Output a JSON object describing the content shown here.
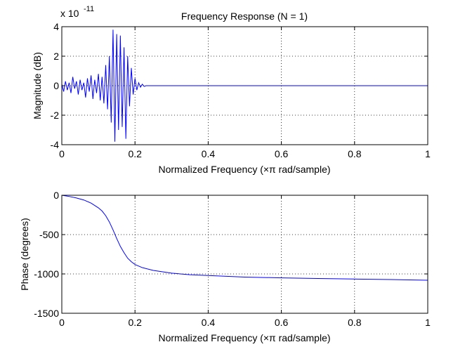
{
  "chart_data": [
    {
      "type": "line",
      "title": "Frequency Response (N = 1)",
      "xlabel": "Normalized Frequency  (×π rad/sample)",
      "ylabel": "Magnitude (dB)",
      "exponent_base": "x 10",
      "exponent_power": "-11",
      "xlim": [
        0,
        1
      ],
      "ylim": [
        -4,
        4
      ],
      "xticks": [
        0,
        0.2,
        0.4,
        0.6,
        0.8,
        1
      ],
      "xtick_labels": [
        "0",
        "0.2",
        "0.4",
        "0.6",
        "0.8",
        "1"
      ],
      "yticks": [
        -4,
        -2,
        0,
        2,
        4
      ],
      "ytick_labels": [
        "-4",
        "-2",
        "0",
        "2",
        "4"
      ],
      "grid": true,
      "color": "#0000ff",
      "series": [
        {
          "x": [
            0,
            0.005,
            0.01,
            0.015,
            0.02,
            0.025,
            0.03,
            0.035,
            0.04,
            0.045,
            0.05,
            0.055,
            0.06,
            0.065,
            0.07,
            0.075,
            0.08,
            0.085,
            0.09,
            0.095,
            0.1,
            0.105,
            0.11,
            0.115,
            0.12,
            0.125,
            0.13,
            0.135,
            0.14,
            0.145,
            0.15,
            0.155,
            0.16,
            0.165,
            0.17,
            0.175,
            0.18,
            0.185,
            0.19,
            0.195,
            0.2,
            0.205,
            0.21,
            0.215,
            0.22,
            0.225,
            0.23,
            0.24,
            0.25,
            0.3,
            0.4,
            0.5,
            0.6,
            0.7,
            0.8,
            0.9,
            1
          ],
          "y": [
            0.1,
            -0.4,
            0.3,
            -0.3,
            0.2,
            -0.5,
            0.6,
            -0.2,
            0.3,
            -0.6,
            0.4,
            -0.3,
            0.2,
            -0.8,
            0.5,
            -0.4,
            0.7,
            -0.9,
            0.4,
            -0.5,
            0.8,
            -1.0,
            0.6,
            -1.2,
            1.4,
            -1.6,
            2.0,
            -2.5,
            3.8,
            -3.8,
            3.5,
            -3.0,
            3.4,
            -2.8,
            2.6,
            -3.6,
            2.0,
            -1.4,
            1.2,
            -0.6,
            0.5,
            -0.3,
            0.2,
            -0.1,
            0.1,
            -0.05,
            0,
            0,
            0,
            0,
            0,
            0,
            0,
            0,
            0,
            0,
            0
          ]
        }
      ]
    },
    {
      "type": "line",
      "title": "",
      "xlabel": "Normalized Frequency  (×π rad/sample)",
      "ylabel": "Phase (degrees)",
      "xlim": [
        0,
        1
      ],
      "ylim": [
        -1500,
        0
      ],
      "xticks": [
        0,
        0.2,
        0.4,
        0.6,
        0.8,
        1
      ],
      "xtick_labels": [
        "0",
        "0.2",
        "0.4",
        "0.6",
        "0.8",
        "1"
      ],
      "yticks": [
        -1500,
        -1000,
        -500,
        0
      ],
      "ytick_labels": [
        "-1500",
        "-1000",
        "-500",
        "0"
      ],
      "grid": true,
      "color": "#0000ff",
      "series": [
        {
          "x": [
            0,
            0.02,
            0.04,
            0.06,
            0.08,
            0.1,
            0.11,
            0.12,
            0.13,
            0.14,
            0.15,
            0.16,
            0.17,
            0.18,
            0.19,
            0.2,
            0.22,
            0.25,
            0.3,
            0.35,
            0.4,
            0.45,
            0.5,
            0.6,
            0.7,
            0.8,
            0.9,
            1
          ],
          "y": [
            0,
            -15,
            -35,
            -60,
            -100,
            -160,
            -200,
            -260,
            -340,
            -440,
            -550,
            -650,
            -730,
            -800,
            -845,
            -880,
            -920,
            -955,
            -990,
            -1010,
            -1020,
            -1030,
            -1040,
            -1050,
            -1058,
            -1065,
            -1072,
            -1080
          ]
        }
      ]
    }
  ]
}
